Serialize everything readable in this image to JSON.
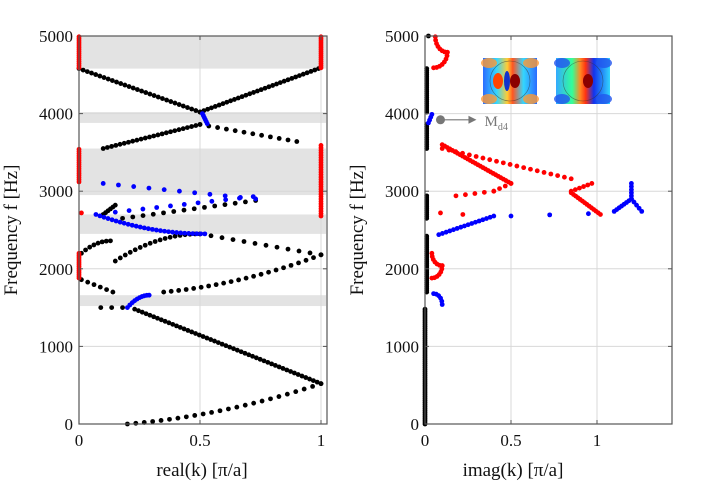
{
  "chart_data": [
    {
      "type": "scatter",
      "title": "",
      "xlabel": "real(k) [π/a]",
      "ylabel": "Frequency f [Hz]",
      "xlim": [
        0,
        1.02
      ],
      "ylim": [
        0,
        5000
      ],
      "xticks": [
        "0",
        "0.5",
        "1"
      ],
      "yticks": [
        "0",
        "1000",
        "2000",
        "3000",
        "4000",
        "5000"
      ],
      "grid": true,
      "bandgaps_hz": [
        [
          4580,
          5000
        ],
        [
          3880,
          4020
        ],
        [
          2950,
          3000
        ],
        [
          3000,
          3550
        ],
        [
          2450,
          2700
        ],
        [
          1520,
          1660
        ]
      ],
      "series": [
        {
          "name": "black",
          "color": "#000000",
          "curves": [
            {
              "x0": 0.2,
              "x1": 1.0,
              "f0": 0,
              "f1": 520,
              "n": 24,
              "shape": "convex"
            },
            {
              "x0": 0.23,
              "x1": 1.0,
              "f0": 1480,
              "f1": 520,
              "n": 50,
              "shape": "linear"
            },
            {
              "x0": 0.09,
              "x1": 0.18,
              "f0": 1500,
              "f1": 1500,
              "n": 3,
              "shape": "linear"
            },
            {
              "x0": 0.01,
              "x1": 0.14,
              "f0": 1860,
              "f1": 1700,
              "n": 6,
              "shape": "linear"
            },
            {
              "x0": 0.35,
              "x1": 1.0,
              "f0": 1700,
              "f1": 2180,
              "n": 22,
              "shape": "convex"
            },
            {
              "x0": 0.01,
              "x1": 0.13,
              "f0": 2200,
              "f1": 2360,
              "n": 8,
              "shape": "concave"
            },
            {
              "x0": 0.15,
              "x1": 0.5,
              "f0": 2100,
              "f1": 2450,
              "n": 18,
              "shape": "concave"
            },
            {
              "x0": 0.5,
              "x1": 1.0,
              "f0": 2450,
              "f1": 2180,
              "n": 12,
              "shape": "linear"
            },
            {
              "x0": 0.1,
              "x1": 0.15,
              "f0": 2700,
              "f1": 2820,
              "n": 6,
              "shape": "linear"
            },
            {
              "x0": 0.18,
              "x1": 0.73,
              "f0": 2650,
              "f1": 2880,
              "n": 14,
              "shape": "linear"
            },
            {
              "x0": 0.0,
              "x1": 0.5,
              "f0": 4580,
              "f1": 4020,
              "n": 30,
              "shape": "linear"
            },
            {
              "x0": 0.5,
              "x1": 0.99,
              "f0": 4020,
              "f1": 4580,
              "n": 32,
              "shape": "linear"
            },
            {
              "x0": 0.1,
              "x1": 0.5,
              "f0": 3550,
              "f1": 3860,
              "n": 24,
              "shape": "linear"
            },
            {
              "x0": 0.5,
              "x1": 0.9,
              "f0": 3860,
              "f1": 3640,
              "n": 12,
              "shape": "linear"
            }
          ]
        },
        {
          "name": "blue",
          "color": "#0000ff",
          "curves": [
            {
              "x0": 0.2,
              "x1": 0.29,
              "f0": 1500,
              "f1": 1660,
              "n": 10,
              "shape": "concave"
            },
            {
              "x0": 0.07,
              "x1": 0.52,
              "f0": 2700,
              "f1": 2450,
              "n": 28,
              "shape": "concave"
            },
            {
              "x0": 0.1,
              "x1": 0.73,
              "f0": 3100,
              "f1": 2900,
              "n": 11,
              "shape": "linear"
            },
            {
              "x0": 0.15,
              "x1": 0.72,
              "f0": 2730,
              "f1": 2930,
              "n": 11,
              "shape": "linear"
            },
            {
              "x0": 0.51,
              "x1": 0.53,
              "f0": 4000,
              "f1": 3870,
              "n": 6,
              "shape": "linear"
            }
          ]
        },
        {
          "name": "red",
          "color": "#ff0000",
          "curves": [
            {
              "x0": 0.0,
              "x1": 0.0,
              "f0": 1880,
              "f1": 2200,
              "n": 14,
              "shape": "linear"
            },
            {
              "x0": 0.0,
              "x1": 0.0,
              "f0": 3120,
              "f1": 3540,
              "n": 16,
              "shape": "linear"
            },
            {
              "x0": 0.0,
              "x1": 0.0,
              "f0": 4590,
              "f1": 4990,
              "n": 16,
              "shape": "linear"
            },
            {
              "x0": 1.0,
              "x1": 1.0,
              "f0": 4590,
              "f1": 4990,
              "n": 16,
              "shape": "linear"
            },
            {
              "x0": 1.0,
              "x1": 1.0,
              "f0": 2680,
              "f1": 3590,
              "n": 30,
              "shape": "linear"
            },
            {
              "x0": 0.01,
              "x1": 0.01,
              "f0": 2720,
              "f1": 2720,
              "n": 1,
              "shape": "linear"
            }
          ]
        }
      ]
    },
    {
      "type": "scatter",
      "title": "",
      "xlabel": "imag(k) [π/a]",
      "ylabel": "Frequency f [Hz]",
      "xlim": [
        0,
        1.43
      ],
      "ylim": [
        0,
        5000
      ],
      "xticks": [
        "0",
        "0.5",
        "1"
      ],
      "yticks": [
        "0",
        "1000",
        "2000",
        "3000",
        "4000",
        "5000"
      ],
      "grid": true,
      "annotation": {
        "label": "M",
        "subscript": "d4",
        "at_f": 3920,
        "at_x": 0.09
      },
      "insets": [
        "mode-shape-1",
        "mode-shape-2"
      ],
      "series": [
        {
          "name": "black",
          "color": "#000000",
          "curves": [
            {
              "x0": 0.0,
              "x1": 0.0,
              "f0": 0,
              "f1": 1480,
              "n": 60,
              "shape": "linear"
            },
            {
              "x0": 0.01,
              "x1": 0.01,
              "f0": 1700,
              "f1": 2420,
              "n": 30,
              "shape": "linear"
            },
            {
              "x0": 0.01,
              "x1": 0.01,
              "f0": 2650,
              "f1": 2940,
              "n": 12,
              "shape": "linear"
            },
            {
              "x0": 0.01,
              "x1": 0.01,
              "f0": 3550,
              "f1": 3860,
              "n": 12,
              "shape": "linear"
            },
            {
              "x0": 0.01,
              "x1": 0.01,
              "f0": 4020,
              "f1": 4580,
              "n": 22,
              "shape": "linear"
            },
            {
              "x0": 0.02,
              "x1": 0.02,
              "f0": 5000,
              "f1": 5000,
              "n": 1,
              "shape": "linear"
            }
          ]
        },
        {
          "name": "red",
          "color": "#ff0000",
          "curves": [
            {
              "x0": 0.05,
              "x1": 0.13,
              "f0": 4590,
              "f1": 4790,
              "n": 8,
              "shape": "arc"
            },
            {
              "x0": 0.13,
              "x1": 0.06,
              "f0": 4790,
              "f1": 4990,
              "n": 8,
              "shape": "arc"
            },
            {
              "x0": 0.04,
              "x1": 0.1,
              "f0": 1880,
              "f1": 2040,
              "n": 7,
              "shape": "arc"
            },
            {
              "x0": 0.1,
              "x1": 0.04,
              "f0": 2040,
              "f1": 2200,
              "n": 7,
              "shape": "arc"
            },
            {
              "x0": 0.1,
              "x1": 0.5,
              "f0": 3600,
              "f1": 3100,
              "n": 28,
              "shape": "linear"
            },
            {
              "x0": 0.5,
              "x1": 0.4,
              "f0": 3100,
              "f1": 3000,
              "n": 4,
              "shape": "linear"
            },
            {
              "x0": 0.4,
              "x1": 0.18,
              "f0": 3000,
              "f1": 2940,
              "n": 5,
              "shape": "linear"
            },
            {
              "x0": 0.1,
              "x1": 0.85,
              "f0": 3550,
              "f1": 3160,
              "n": 20,
              "shape": "linear"
            },
            {
              "x0": 0.85,
              "x1": 0.97,
              "f0": 3000,
              "f1": 3100,
              "n": 6,
              "shape": "linear"
            },
            {
              "x0": 0.85,
              "x1": 1.02,
              "f0": 2980,
              "f1": 2700,
              "n": 14,
              "shape": "linear"
            },
            {
              "x0": 0.09,
              "x1": 0.22,
              "f0": 2720,
              "f1": 2700,
              "n": 2,
              "shape": "linear"
            }
          ]
        },
        {
          "name": "blue",
          "color": "#0000ff",
          "curves": [
            {
              "x0": 0.08,
              "x1": 0.4,
              "f0": 2440,
              "f1": 2680,
              "n": 16,
              "shape": "linear"
            },
            {
              "x0": 0.5,
              "x1": 0.95,
              "f0": 2680,
              "f1": 2710,
              "n": 3,
              "shape": "linear"
            },
            {
              "x0": 1.1,
              "x1": 1.2,
              "f0": 2740,
              "f1": 2900,
              "n": 8,
              "shape": "linear"
            },
            {
              "x0": 1.2,
              "x1": 1.2,
              "f0": 2900,
              "f1": 3100,
              "n": 6,
              "shape": "linear"
            },
            {
              "x0": 1.2,
              "x1": 1.26,
              "f0": 2900,
              "f1": 2740,
              "n": 5,
              "shape": "linear"
            },
            {
              "x0": 0.05,
              "x1": 0.1,
              "f0": 1680,
              "f1": 1540,
              "n": 6,
              "shape": "arc"
            },
            {
              "x0": 0.02,
              "x1": 0.04,
              "f0": 3880,
              "f1": 3990,
              "n": 4,
              "shape": "linear"
            }
          ]
        }
      ]
    }
  ]
}
